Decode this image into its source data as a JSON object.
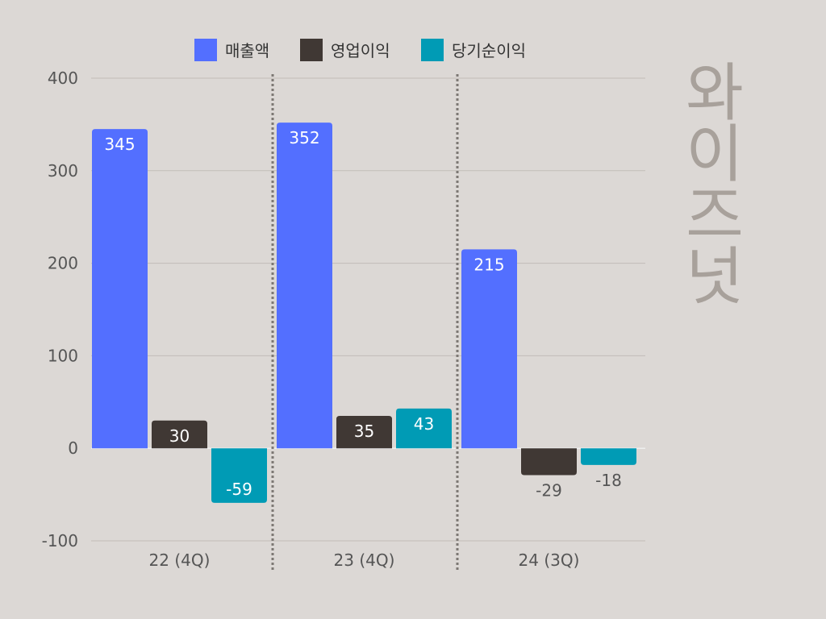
{
  "chart_data": {
    "type": "bar",
    "title": "와이즈넛",
    "categories": [
      "22 (4Q)",
      "23 (4Q)",
      "24 (3Q)"
    ],
    "series": [
      {
        "name": "매출액",
        "values": [
          345,
          352,
          215
        ],
        "color": "#536fff"
      },
      {
        "name": "영업이익",
        "values": [
          30,
          35,
          -29
        ],
        "color": "#403834"
      },
      {
        "name": "당기순이익",
        "values": [
          -59,
          43,
          -18
        ],
        "color": "#009bb5"
      }
    ],
    "ylim": [
      -100,
      400
    ],
    "yticks": [
      400,
      300,
      200,
      100,
      0,
      -100
    ],
    "grid": true,
    "legend_position": "top",
    "xlabel": "",
    "ylabel": ""
  }
}
